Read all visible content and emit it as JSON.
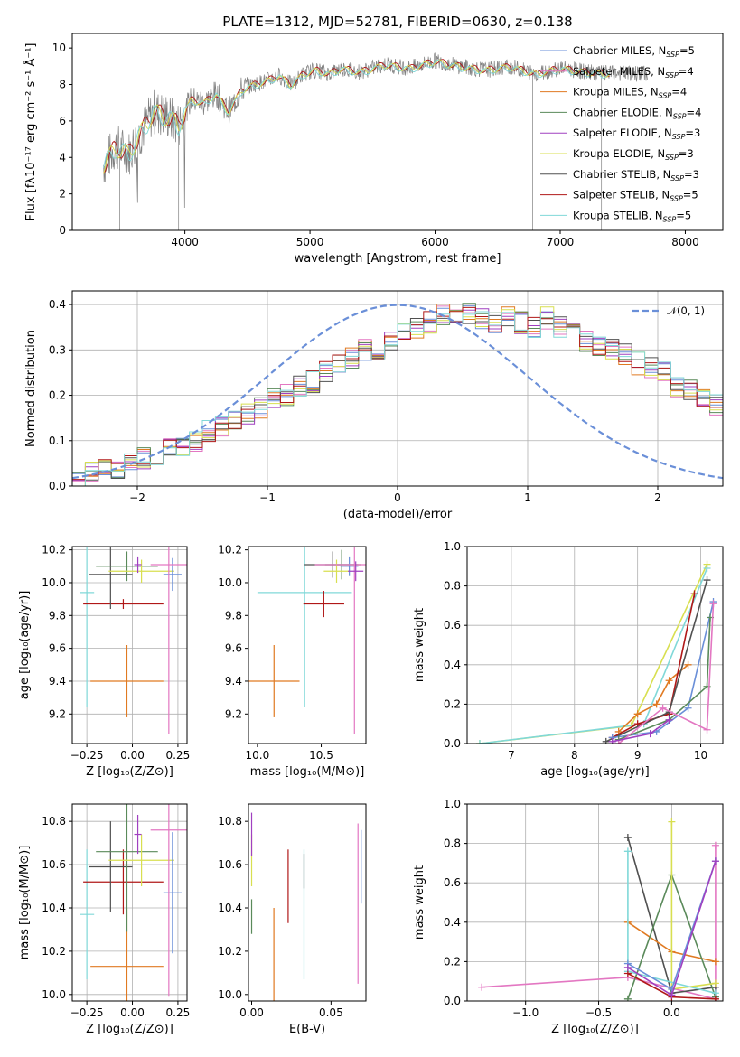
{
  "title": "PLATE=1312, MJD=52781, FIBERID=0630, z=0.138",
  "colors": {
    "Chabrier MILES": "#6a8fd8",
    "Salpeter MILES": "#e377c2",
    "Kroupa MILES": "#e07a22",
    "Chabrier ELODIE": "#5a8a5a",
    "Salpeter ELODIE": "#a040c0",
    "Kroupa ELODIE": "#d8df50",
    "Chabrier STELIB": "#505050",
    "Salpeter STELIB": "#b01818",
    "Kroupa STELIB": "#80d8d8",
    "gaussian": "#6a8fd8",
    "spectrum": "#808080"
  },
  "legend": [
    {
      "name": "Chabrier MILES",
      "label": "Chabrier MILES, N",
      "sub": "SSP",
      "n": "=5"
    },
    {
      "name": "Salpeter MILES",
      "label": "Salpeter MILES, N",
      "sub": "SSP",
      "n": "=4"
    },
    {
      "name": "Kroupa MILES",
      "label": "Kroupa MILES, N",
      "sub": "SSP",
      "n": "=4"
    },
    {
      "name": "Chabrier ELODIE",
      "label": "Chabrier ELODIE, N",
      "sub": "SSP",
      "n": "=4"
    },
    {
      "name": "Salpeter ELODIE",
      "label": "Salpeter ELODIE, N",
      "sub": "SSP",
      "n": "=3"
    },
    {
      "name": "Kroupa ELODIE",
      "label": "Kroupa ELODIE, N",
      "sub": "SSP",
      "n": "=3"
    },
    {
      "name": "Chabrier STELIB",
      "label": "Chabrier STELIB, N",
      "sub": "SSP",
      "n": "=3"
    },
    {
      "name": "Salpeter STELIB",
      "label": "Salpeter STELIB, N",
      "sub": "SSP",
      "n": "=5"
    },
    {
      "name": "Kroupa STELIB",
      "label": "Kroupa STELIB, N",
      "sub": "SSP",
      "n": "=5"
    }
  ],
  "hist_legend": "𝒩(0, 1)",
  "chart_data": [
    {
      "id": "spectrum",
      "type": "line",
      "xlabel": "wavelength [Angstrom, rest frame]",
      "ylabel": "Flux [fλ10⁻¹⁷ erg cm⁻² s⁻¹ Å⁻¹]",
      "xlim": [
        3100,
        8300
      ],
      "ylim": [
        0,
        10.8
      ],
      "xticks": [
        4000,
        5000,
        6000,
        7000,
        8000
      ],
      "yticks": [
        0,
        2,
        4,
        6,
        8,
        10
      ],
      "model_x": [
        3350,
        3450,
        3550,
        3650,
        3750,
        3850,
        3950,
        4050,
        4150,
        4250,
        4350,
        4450,
        4550,
        4650,
        4750,
        4850,
        4950,
        5050,
        5150,
        5250,
        5400,
        5600,
        5800,
        6000,
        6200,
        6400,
        6600,
        6800,
        7000,
        7200,
        7400
      ],
      "model_y": [
        3.6,
        4.6,
        4.2,
        5.4,
        6.5,
        6.3,
        5.8,
        7.2,
        7.0,
        7.5,
        6.5,
        7.7,
        8.0,
        8.2,
        8.5,
        8.0,
        8.6,
        8.8,
        8.6,
        8.9,
        8.7,
        9.1,
        8.9,
        9.3,
        9.0,
        8.8,
        9.0,
        8.6,
        8.9,
        8.7,
        8.6
      ],
      "grid": false
    },
    {
      "id": "histogram",
      "type": "bar",
      "xlabel": "(data-model)/error",
      "ylabel": "Normed distribution",
      "xlim": [
        -2.5,
        2.5
      ],
      "ylim": [
        0,
        0.43
      ],
      "xticks": [
        -2,
        -1,
        0,
        1,
        2
      ],
      "yticks": [
        0.0,
        0.1,
        0.2,
        0.3,
        0.4
      ],
      "bin_width": 0.1,
      "bins_start": -2.5,
      "base_heights": [
        0.02,
        0.03,
        0.035,
        0.04,
        0.05,
        0.06,
        0.065,
        0.08,
        0.09,
        0.1,
        0.12,
        0.13,
        0.14,
        0.16,
        0.17,
        0.19,
        0.2,
        0.22,
        0.23,
        0.25,
        0.27,
        0.28,
        0.3,
        0.3,
        0.32,
        0.34,
        0.35,
        0.36,
        0.38,
        0.37,
        0.38,
        0.37,
        0.36,
        0.37,
        0.36,
        0.35,
        0.37,
        0.35,
        0.34,
        0.32,
        0.31,
        0.3,
        0.29,
        0.27,
        0.26,
        0.25,
        0.22,
        0.21,
        0.19,
        0.18
      ],
      "grid": true
    },
    {
      "id": "age-vs-Z",
      "type": "scatter",
      "xlabel": "Z [log₁₀(Z/Z⊙)]",
      "ylabel": "age  [log₁₀(age/yr)]",
      "xlim": [
        -0.33,
        0.3
      ],
      "ylim": [
        9.02,
        10.22
      ],
      "xticks": [
        -0.25,
        0.0,
        0.25
      ],
      "yticks": [
        9.2,
        9.4,
        9.6,
        9.8,
        10.0,
        10.2
      ],
      "points": [
        {
          "s": "Kroupa MILES",
          "x": -0.03,
          "y": 9.4,
          "xe": 0.2,
          "ye": 0.22
        },
        {
          "s": "Kroupa STELIB",
          "x": -0.25,
          "y": 9.94,
          "xe": 0.04,
          "ye": 0.7
        },
        {
          "s": "Salpeter STELIB",
          "x": -0.05,
          "y": 9.87,
          "xe": 0.22,
          "ye": 0.03
        },
        {
          "s": "Chabrier STELIB",
          "x": -0.12,
          "y": 10.05,
          "xe": 0.12,
          "ye": 0.21
        },
        {
          "s": "Chabrier ELODIE",
          "x": -0.03,
          "y": 10.1,
          "xe": 0.17,
          "ye": 0.09
        },
        {
          "s": "Kroupa ELODIE",
          "x": 0.05,
          "y": 10.07,
          "xe": 0.18,
          "ye": 0.07
        },
        {
          "s": "Chabrier MILES",
          "x": 0.22,
          "y": 10.05,
          "xe": 0.05,
          "ye": 0.1
        },
        {
          "s": "Salpeter MILES",
          "x": 0.2,
          "y": 10.11,
          "xe": 0.1,
          "ye": 1.03
        },
        {
          "s": "Salpeter ELODIE",
          "x": 0.03,
          "y": 10.11,
          "xe": 0.02,
          "ye": 0.05
        }
      ],
      "grid": true
    },
    {
      "id": "age-vs-mass",
      "type": "scatter",
      "xlabel": "mass [log₁₀(M/M⊙)]",
      "ylabel": "",
      "xlim": [
        9.93,
        10.85
      ],
      "ylim": [
        9.02,
        10.22
      ],
      "xticks": [
        10.0,
        10.5
      ],
      "yticks": [
        9.2,
        9.4,
        9.6,
        9.8,
        10.0,
        10.2
      ],
      "points": [
        {
          "s": "Kroupa MILES",
          "x": 10.13,
          "y": 9.4,
          "xe": 0.2,
          "ye": 0.22
        },
        {
          "s": "Kroupa STELIB",
          "x": 10.37,
          "y": 9.94,
          "xe": 0.37,
          "ye": 0.7
        },
        {
          "s": "Salpeter STELIB",
          "x": 10.52,
          "y": 9.87,
          "xe": 0.16,
          "ye": 0.08
        },
        {
          "s": "Chabrier STELIB",
          "x": 10.59,
          "y": 10.11,
          "xe": 0.22,
          "ye": 0.08
        },
        {
          "s": "Chabrier ELODIE",
          "x": 10.66,
          "y": 10.11,
          "xe": 0.13,
          "ye": 0.09
        },
        {
          "s": "Kroupa ELODIE",
          "x": 10.62,
          "y": 10.07,
          "xe": 0.1,
          "ye": 0.07
        },
        {
          "s": "Chabrier MILES",
          "x": 10.72,
          "y": 10.1,
          "xe": 0.07,
          "ye": 0.06
        },
        {
          "s": "Salpeter MILES",
          "x": 10.76,
          "y": 10.11,
          "xe": 0.31,
          "ye": 1.03
        },
        {
          "s": "Salpeter ELODIE",
          "x": 10.77,
          "y": 10.07,
          "xe": 0.06,
          "ye": 0.06
        }
      ],
      "grid": false
    },
    {
      "id": "mass-weight-vs-age",
      "type": "line",
      "xlabel": "age  [log₁₀(age/yr)]",
      "ylabel": "mass weight",
      "xlim": [
        6.3,
        10.35
      ],
      "ylim": [
        0,
        1.0
      ],
      "xticks": [
        7,
        8,
        9,
        10
      ],
      "yticks": [
        0.0,
        0.2,
        0.4,
        0.6,
        0.8,
        1.0
      ],
      "series": [
        {
          "s": "Kroupa ELODIE",
          "x": [
            6.5,
            8.9,
            10.1
          ],
          "y": [
            0.0,
            0.09,
            0.91
          ]
        },
        {
          "s": "Kroupa STELIB",
          "x": [
            6.5,
            9.1,
            10.1
          ],
          "y": [
            0.0,
            0.1,
            0.89
          ]
        },
        {
          "s": "Kroupa MILES",
          "x": [
            8.7,
            9.0,
            9.3,
            9.5,
            9.8
          ],
          "y": [
            0.06,
            0.15,
            0.2,
            0.32,
            0.4
          ]
        },
        {
          "s": "Salpeter STELIB",
          "x": [
            8.6,
            9.0,
            9.5,
            9.9
          ],
          "y": [
            0.03,
            0.1,
            0.15,
            0.76
          ]
        },
        {
          "s": "Chabrier STELIB",
          "x": [
            8.5,
            9.5,
            10.1
          ],
          "y": [
            0.01,
            0.16,
            0.83
          ]
        },
        {
          "s": "Chabrier MILES",
          "x": [
            8.6,
            9.3,
            9.8,
            10.2
          ],
          "y": [
            0.03,
            0.06,
            0.18,
            0.72
          ]
        },
        {
          "s": "Chabrier ELODIE",
          "x": [
            8.7,
            9.5,
            10.1,
            10.15
          ],
          "y": [
            0.02,
            0.12,
            0.29,
            0.64
          ]
        },
        {
          "s": "Salpeter MILES",
          "x": [
            8.7,
            9.4,
            10.1,
            10.2
          ],
          "y": [
            0.0,
            0.18,
            0.07,
            0.71
          ]
        },
        {
          "s": "Salpeter ELODIE",
          "x": [
            8.6,
            9.2,
            9.5
          ],
          "y": [
            0.01,
            0.05,
            0.12
          ]
        }
      ],
      "grid": true
    },
    {
      "id": "mass-vs-Z",
      "type": "scatter",
      "xlabel": "Z [log₁₀(Z/Z⊙)]",
      "ylabel": "mass [log₁₀(M/M⊙)]",
      "xlim": [
        -0.33,
        0.3
      ],
      "ylim": [
        9.97,
        10.88
      ],
      "xticks": [
        -0.25,
        0.0,
        0.25
      ],
      "yticks": [
        10.0,
        10.2,
        10.4,
        10.6,
        10.8
      ],
      "points": [
        {
          "s": "Kroupa MILES",
          "x": -0.03,
          "y": 10.13,
          "xe": 0.2,
          "ye": 0.27
        },
        {
          "s": "Kroupa STELIB",
          "x": -0.25,
          "y": 10.37,
          "xe": 0.04,
          "ye": 0.3
        },
        {
          "s": "Salpeter STELIB",
          "x": -0.05,
          "y": 10.52,
          "xe": 0.22,
          "ye": 0.15
        },
        {
          "s": "Chabrier STELIB",
          "x": -0.12,
          "y": 10.59,
          "xe": 0.12,
          "ye": 0.21
        },
        {
          "s": "Chabrier ELODIE",
          "x": -0.03,
          "y": 10.66,
          "xe": 0.17,
          "ye": 0.37
        },
        {
          "s": "Kroupa ELODIE",
          "x": 0.05,
          "y": 10.62,
          "xe": 0.18,
          "ye": 0.12
        },
        {
          "s": "Chabrier MILES",
          "x": 0.22,
          "y": 10.47,
          "xe": 0.05,
          "ye": 0.28
        },
        {
          "s": "Salpeter MILES",
          "x": 0.2,
          "y": 10.76,
          "xe": 0.1,
          "ye": 0.77
        },
        {
          "s": "Salpeter ELODIE",
          "x": 0.03,
          "y": 10.74,
          "xe": 0.02,
          "ye": 0.09
        }
      ],
      "grid": true
    },
    {
      "id": "mass-vs-EBV",
      "type": "scatter",
      "xlabel": "E(B-V)",
      "ylabel": "",
      "xlim": [
        -0.002,
        0.072
      ],
      "ylim": [
        9.97,
        10.88
      ],
      "xticks": [
        0.0,
        0.05
      ],
      "yticks": [
        10.0,
        10.2,
        10.4,
        10.6,
        10.8
      ],
      "points": [
        {
          "s": "Kroupa MILES",
          "x": 0.014,
          "y": 10.18,
          "ye": 0.22
        },
        {
          "s": "Kroupa STELIB",
          "x": 0.033,
          "y": 10.37,
          "ye": 0.3
        },
        {
          "s": "Salpeter STELIB",
          "x": 0.023,
          "y": 10.5,
          "ye": 0.17
        },
        {
          "s": "Chabrier STELIB",
          "x": 0.033,
          "y": 10.57,
          "ye": 0.08
        },
        {
          "s": "Chabrier ELODIE",
          "x": 0.0,
          "y": 10.36,
          "ye": 0.08
        },
        {
          "s": "Kroupa ELODIE",
          "x": 0.0,
          "y": 10.62,
          "ye": 0.12
        },
        {
          "s": "Chabrier MILES",
          "x": 0.069,
          "y": 10.59,
          "ye": 0.17
        },
        {
          "s": "Salpeter MILES",
          "x": 0.067,
          "y": 10.42,
          "ye": 0.37
        },
        {
          "s": "Salpeter ELODIE",
          "x": 0.0,
          "y": 10.74,
          "ye": 0.1
        }
      ],
      "grid": false
    },
    {
      "id": "mass-weight-vs-Z",
      "type": "line",
      "xlabel": "Z [log₁₀(Z/Z⊙)]",
      "ylabel": "mass weight",
      "xlim": [
        -1.4,
        0.35
      ],
      "ylim": [
        0,
        1.0
      ],
      "xticks": [
        -1.0,
        -0.5,
        0.0
      ],
      "yticks": [
        0.0,
        0.2,
        0.4,
        0.6,
        0.8,
        1.0
      ],
      "series": [
        {
          "s": "Salpeter MILES",
          "x": [
            -1.3,
            -0.3,
            0.3,
            0.3
          ],
          "y": [
            0.07,
            0.12,
            0.01,
            0.79
          ]
        },
        {
          "s": "Chabrier STELIB",
          "x": [
            -0.3,
            0.0,
            0.3
          ],
          "y": [
            0.83,
            0.04,
            0.07
          ]
        },
        {
          "s": "Kroupa MILES",
          "x": [
            -0.3,
            0.0,
            0.3
          ],
          "y": [
            0.4,
            0.25,
            0.2
          ]
        },
        {
          "s": "Chabrier ELODIE",
          "x": [
            -0.3,
            0.0,
            0.3
          ],
          "y": [
            0.01,
            0.64,
            0.02
          ]
        },
        {
          "s": "Kroupa ELODIE",
          "x": [
            0.0,
            0.0,
            0.3
          ],
          "y": [
            0.91,
            0.06,
            0.09
          ]
        },
        {
          "s": "Kroupa STELIB",
          "x": [
            -0.3,
            -0.3,
            0.3
          ],
          "y": [
            0.76,
            0.15,
            0.04
          ]
        },
        {
          "s": "Salpeter STELIB",
          "x": [
            -0.3,
            0.0,
            0.3
          ],
          "y": [
            0.14,
            0.02,
            0.01
          ]
        },
        {
          "s": "Chabrier MILES",
          "x": [
            -0.3,
            0.0,
            0.3
          ],
          "y": [
            0.19,
            0.06,
            0.71
          ]
        },
        {
          "s": "Salpeter ELODIE",
          "x": [
            -0.3,
            0.0,
            0.3
          ],
          "y": [
            0.17,
            0.03,
            0.71
          ]
        }
      ],
      "grid": true
    }
  ]
}
